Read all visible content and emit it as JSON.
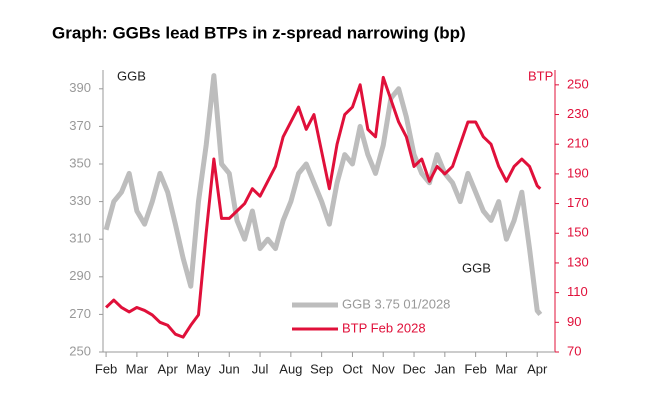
{
  "chart_data": {
    "type": "line",
    "title": "Graph:  GGBs lead BTPs in z-spread narrowing (bp)",
    "annotations": [
      "GGB",
      "BTP",
      "GGB"
    ],
    "x": [
      0,
      0.25,
      0.5,
      0.75,
      1,
      1.25,
      1.5,
      1.75,
      2,
      2.25,
      2.5,
      2.75,
      3,
      3.25,
      3.5,
      3.75,
      4,
      4.25,
      4.5,
      4.75,
      5,
      5.25,
      5.5,
      5.75,
      6,
      6.25,
      6.5,
      6.75,
      7,
      7.25,
      7.5,
      7.75,
      8,
      8.25,
      8.5,
      8.75,
      9,
      9.25,
      9.5,
      9.75,
      10,
      10.25,
      10.5,
      10.75,
      11,
      11.25,
      11.5,
      11.75,
      12,
      12.25,
      12.5,
      12.75,
      13,
      13.25,
      13.5,
      13.75,
      14,
      14.1
    ],
    "xlim": [
      -0.1,
      14.35
    ],
    "xticks": [
      {
        "value": 0,
        "label": "Feb"
      },
      {
        "value": 1,
        "label": "Mar"
      },
      {
        "value": 2,
        "label": "Apr"
      },
      {
        "value": 3,
        "label": "May"
      },
      {
        "value": 4,
        "label": "Jun"
      },
      {
        "value": 5,
        "label": "Jul"
      },
      {
        "value": 6,
        "label": "Aug"
      },
      {
        "value": 7,
        "label": "Sep"
      },
      {
        "value": 8,
        "label": "Oct"
      },
      {
        "value": 9,
        "label": "Nov"
      },
      {
        "value": 10,
        "label": "Dec"
      },
      {
        "value": 11,
        "label": "Jan"
      },
      {
        "value": 12,
        "label": "Feb"
      },
      {
        "value": 13,
        "label": "Mar"
      },
      {
        "value": 14,
        "label": "Apr"
      }
    ],
    "ylim": [
      250,
      400
    ],
    "yticks": [
      250,
      270,
      290,
      310,
      330,
      350,
      370,
      390
    ],
    "y2lim": [
      70,
      260
    ],
    "y2ticks": [
      70,
      90,
      110,
      130,
      150,
      170,
      190,
      210,
      230,
      250
    ],
    "series": [
      {
        "name": "GGB 3.75 01/2028",
        "color": "#bdbdbd",
        "axis": "y",
        "values": [
          315,
          330,
          335,
          345,
          325,
          318,
          330,
          345,
          335,
          318,
          300,
          285,
          330,
          360,
          397,
          350,
          345,
          320,
          310,
          325,
          305,
          310,
          305,
          320,
          330,
          345,
          350,
          340,
          330,
          318,
          340,
          355,
          350,
          370,
          355,
          345,
          360,
          385,
          390,
          375,
          355,
          345,
          340,
          355,
          345,
          340,
          330,
          345,
          335,
          325,
          320,
          330,
          310,
          320,
          335,
          305,
          272,
          270
        ]
      },
      {
        "name": "BTP Feb 2028",
        "color": "#e0103a",
        "axis": "y2",
        "values": [
          100,
          105,
          100,
          97,
          100,
          98,
          95,
          90,
          88,
          82,
          80,
          88,
          95,
          150,
          200,
          160,
          160,
          165,
          170,
          180,
          175,
          185,
          195,
          215,
          225,
          235,
          220,
          230,
          205,
          180,
          210,
          230,
          235,
          250,
          220,
          215,
          255,
          240,
          225,
          215,
          195,
          200,
          185,
          195,
          190,
          195,
          210,
          225,
          225,
          215,
          210,
          195,
          185,
          195,
          200,
          195,
          182,
          180
        ]
      }
    ]
  }
}
